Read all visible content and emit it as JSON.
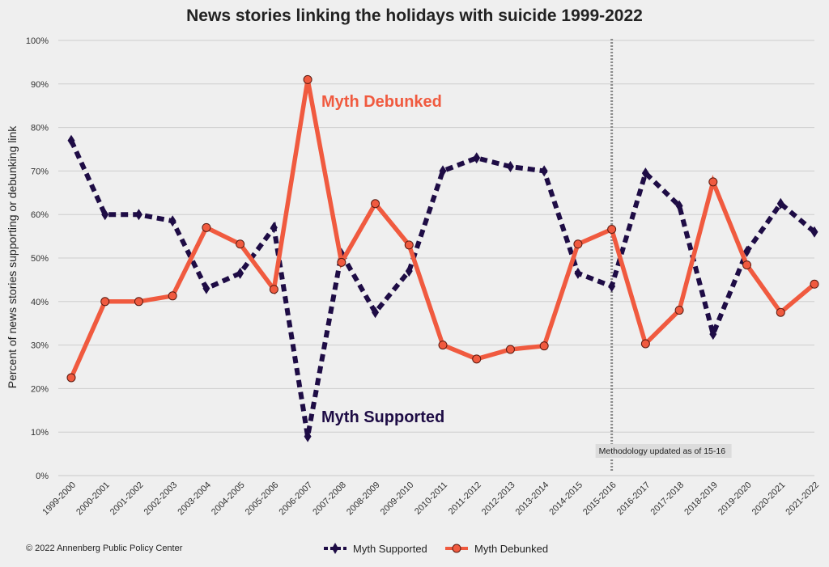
{
  "chart_data": {
    "type": "line",
    "title": "News stories linking the holidays with suicide 1999-2022",
    "ylabel": "Percent of news stories supporting or debunking link",
    "xlabel": "",
    "ylim": [
      0,
      100
    ],
    "yticks": [
      "0%",
      "10%",
      "20%",
      "30%",
      "40%",
      "50%",
      "60%",
      "70%",
      "80%",
      "90%",
      "100%"
    ],
    "categories": [
      "1999-2000",
      "2000-2001",
      "2001-2002",
      "2002-2003",
      "2003-2004",
      "2004-2005",
      "2005-2006",
      "2006-2007",
      "2007-2008",
      "2008-2009",
      "2009-2010",
      "2010-2011",
      "2011-2012",
      "2012-2013",
      "2013-2014",
      "2014-2015",
      "2015-2016",
      "2016-2017",
      "2017-2018",
      "2018-2019",
      "2019-2020",
      "2020-2021",
      "2021-2022"
    ],
    "series": [
      {
        "name": "Myth Supported",
        "color": "#1e0c45",
        "style": "dashed",
        "marker": "diamond",
        "values": [
          77,
          60,
          60,
          58.5,
          43,
          46.5,
          57,
          9,
          51,
          37.5,
          47,
          70,
          73,
          71,
          70,
          46.5,
          43.5,
          69.5,
          62,
          32.5,
          51.5,
          62.5,
          56
        ]
      },
      {
        "name": "Myth Debunked",
        "color": "#f05a3f",
        "style": "solid",
        "marker": "circle",
        "values": [
          22.5,
          40,
          40,
          41.3,
          57,
          53.2,
          42.8,
          91,
          49,
          62.5,
          53,
          30,
          26.8,
          29,
          29.8,
          53.2,
          56.6,
          30.3,
          38,
          67.5,
          48.4,
          37.5,
          44
        ]
      }
    ],
    "annotations": [
      {
        "text": "Myth Debunked",
        "color": "#f05a3f"
      },
      {
        "text": "Myth Supported",
        "color": "#1e0c45"
      },
      {
        "text": "Methodology updated as of 15-16"
      }
    ],
    "vline_category": "2015-2016",
    "grid": true,
    "legend_position": "bottom-center"
  },
  "footer": {
    "copyright": "© 2022 Annenberg Public Policy Center"
  }
}
